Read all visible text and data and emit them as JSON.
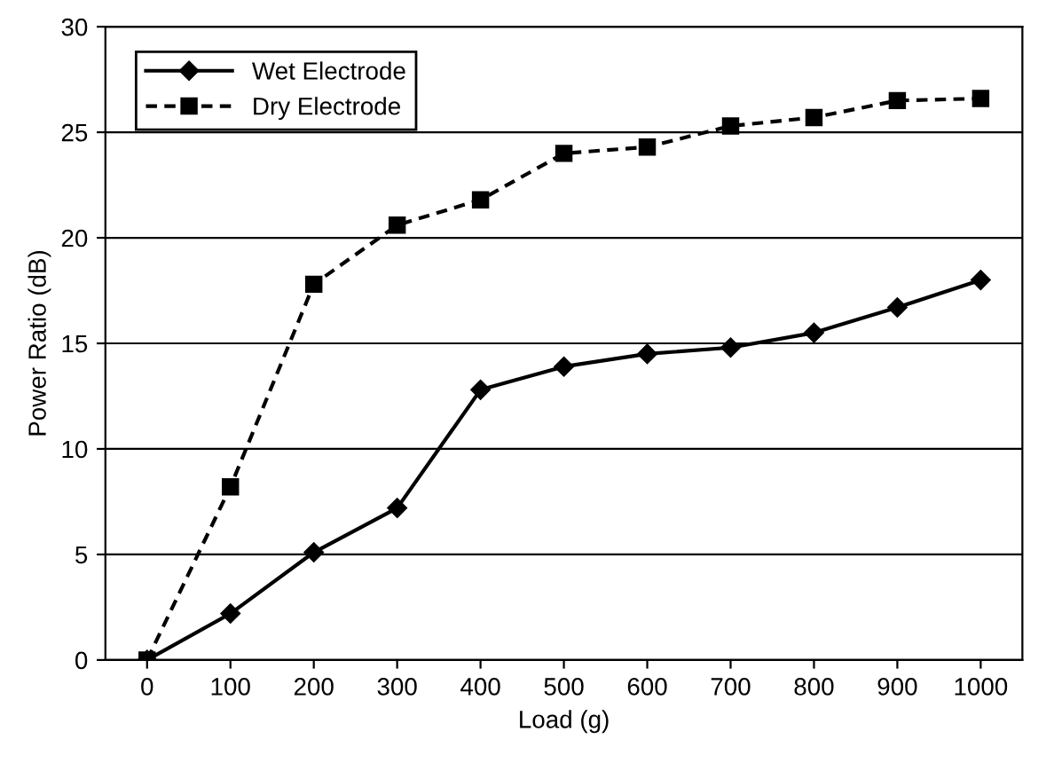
{
  "chart_data": {
    "type": "line",
    "xlabel": "Load (g)",
    "ylabel": "Power Ratio (dB)",
    "categories": [
      "0",
      "100",
      "200",
      "300",
      "400",
      "500",
      "600",
      "700",
      "800",
      "900",
      "1000"
    ],
    "series": [
      {
        "name": "Wet Electrode",
        "color": "#000000",
        "marker": "diamond",
        "line_style": "solid",
        "values": [
          0,
          2.2,
          5.1,
          7.2,
          12.8,
          13.9,
          14.5,
          14.8,
          15.5,
          16.7,
          18.0
        ]
      },
      {
        "name": "Dry Electrode",
        "color": "#000000",
        "marker": "square",
        "line_style": "dashed",
        "values": [
          0,
          8.2,
          17.8,
          20.6,
          21.8,
          24.0,
          24.3,
          25.3,
          25.7,
          26.5,
          26.6
        ]
      }
    ],
    "ylim": [
      0,
      30
    ],
    "yticks": [
      0,
      5,
      10,
      15,
      20,
      25,
      30
    ],
    "grid": "y",
    "legend": "top left"
  }
}
